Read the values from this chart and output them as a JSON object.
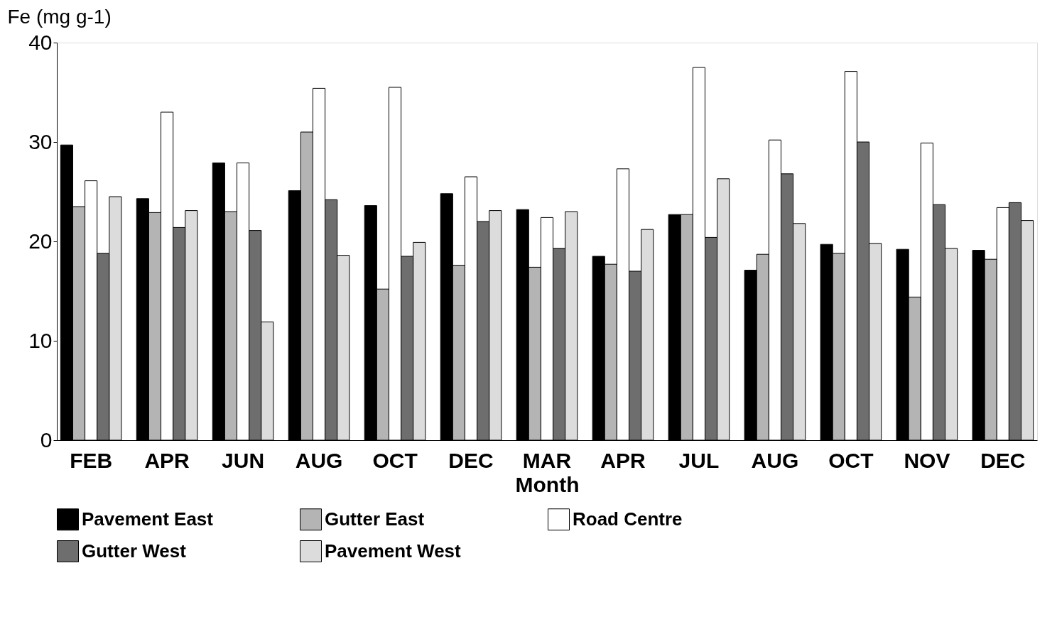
{
  "chart_data": {
    "type": "bar",
    "ylabel": "Fe (mg g-1)",
    "xlabel": "Month",
    "categories": [
      "FEB",
      "APR",
      "JUN",
      "AUG",
      "OCT",
      "DEC",
      "MAR",
      "APR",
      "JUL",
      "AUG",
      "OCT",
      "NOV",
      "DEC"
    ],
    "series": [
      {
        "name": "Pavement East",
        "color": "#000000",
        "values": [
          29.7,
          24.3,
          27.9,
          25.1,
          23.6,
          24.8,
          23.2,
          18.5,
          22.7,
          17.1,
          19.7,
          19.2,
          19.1
        ]
      },
      {
        "name": "Gutter East",
        "color": "#b4b4b4",
        "values": [
          23.5,
          22.9,
          23.0,
          31.0,
          15.2,
          17.6,
          17.4,
          17.7,
          22.7,
          18.7,
          18.8,
          14.4,
          18.2
        ]
      },
      {
        "name": "Road Centre",
        "color": "#ffffff",
        "values": [
          26.1,
          33.0,
          27.9,
          35.4,
          35.5,
          26.5,
          22.4,
          27.3,
          37.5,
          30.2,
          37.1,
          29.9,
          23.4
        ]
      },
      {
        "name": "Gutter West",
        "color": "#6e6e6e",
        "values": [
          18.8,
          21.4,
          21.1,
          24.2,
          18.5,
          22.0,
          19.3,
          17.0,
          20.4,
          26.8,
          30.0,
          23.7,
          23.9
        ]
      },
      {
        "name": "Pavement West",
        "color": "#dcdcdc",
        "values": [
          24.5,
          23.1,
          11.9,
          18.6,
          19.9,
          23.1,
          23.0,
          21.2,
          26.3,
          21.8,
          19.8,
          19.3,
          22.1
        ]
      }
    ],
    "ylim": [
      0,
      40
    ],
    "yticks": [
      0,
      10,
      20,
      30,
      40
    ],
    "grid": false,
    "legend": "bottom"
  }
}
